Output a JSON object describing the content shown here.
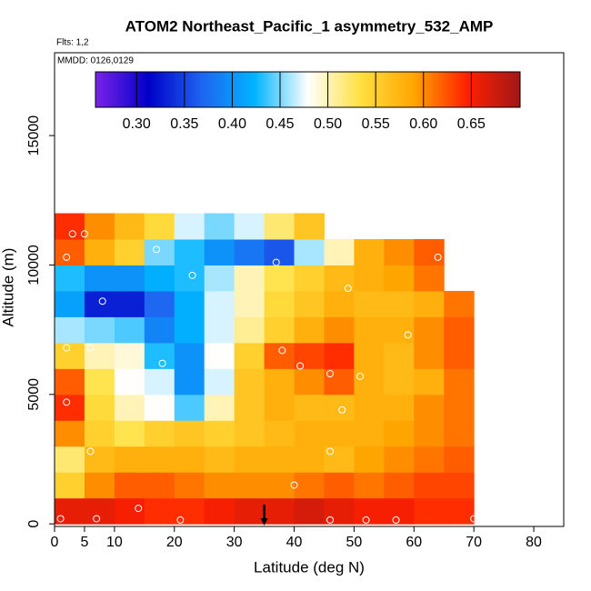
{
  "chart_data": {
    "type": "heatmap",
    "title": "ATOM2 Northeast_Pacific_1 asymmetry_532_AMP",
    "subtitle": "Flts: 1,2",
    "annotation": "MMDD: 0126,0129",
    "x_label": "Latitude (deg N)",
    "y_label": "Altitude (m)",
    "xlim": [
      0,
      85
    ],
    "ylim": [
      -100,
      18200
    ],
    "xticks": [
      0,
      5,
      10,
      20,
      30,
      40,
      50,
      60,
      70,
      80
    ],
    "yticks": [
      0,
      5000,
      10000,
      15000
    ],
    "x_edges": [
      0,
      5,
      10,
      15,
      20,
      25,
      30,
      35,
      40,
      45,
      50,
      55,
      60,
      65,
      70
    ],
    "y_edges": [
      0,
      1000,
      2000,
      3000,
      4000,
      5000,
      6000,
      7000,
      8000,
      9000,
      10000,
      11000,
      12000
    ],
    "z": [
      [
        0.66,
        0.66,
        0.65,
        0.64,
        0.64,
        0.65,
        0.66,
        0.66,
        0.67,
        0.66,
        0.65,
        0.65,
        0.64,
        0.64
      ],
      [
        0.55,
        0.6,
        0.62,
        0.62,
        0.61,
        0.6,
        0.6,
        0.6,
        0.61,
        0.62,
        0.61,
        0.62,
        0.63,
        0.63
      ],
      [
        0.52,
        0.57,
        0.58,
        0.58,
        0.58,
        0.57,
        0.58,
        0.58,
        0.58,
        0.57,
        0.59,
        0.6,
        0.61,
        0.62
      ],
      [
        0.6,
        0.55,
        0.53,
        0.55,
        0.56,
        0.55,
        0.56,
        0.57,
        0.58,
        0.58,
        0.58,
        0.59,
        0.6,
        0.61
      ],
      [
        0.64,
        0.54,
        0.5,
        0.48,
        0.44,
        0.5,
        0.56,
        0.58,
        0.57,
        0.57,
        0.58,
        0.58,
        0.6,
        0.61
      ],
      [
        0.62,
        0.53,
        0.48,
        0.47,
        0.4,
        0.47,
        0.56,
        0.58,
        0.6,
        0.62,
        0.58,
        0.57,
        0.58,
        0.61
      ],
      [
        0.55,
        0.5,
        0.49,
        0.43,
        0.4,
        0.48,
        0.55,
        0.62,
        0.63,
        0.64,
        0.58,
        0.57,
        0.6,
        0.62
      ],
      [
        0.46,
        0.45,
        0.44,
        0.39,
        0.42,
        0.47,
        0.51,
        0.55,
        0.58,
        0.6,
        0.58,
        0.58,
        0.6,
        0.62
      ],
      [
        0.41,
        0.33,
        0.33,
        0.37,
        0.42,
        0.47,
        0.5,
        0.54,
        0.56,
        0.58,
        0.57,
        0.57,
        0.58,
        0.61
      ],
      [
        0.43,
        0.4,
        0.4,
        0.42,
        0.43,
        0.46,
        0.5,
        0.53,
        0.55,
        0.57,
        0.58,
        0.59,
        0.61,
        null
      ],
      [
        0.62,
        0.58,
        0.55,
        0.45,
        0.43,
        0.4,
        0.38,
        0.36,
        0.46,
        0.5,
        0.58,
        0.6,
        0.62,
        null
      ],
      [
        0.64,
        0.6,
        0.57,
        0.54,
        0.47,
        0.45,
        0.47,
        0.52,
        0.56,
        null,
        null,
        null,
        null,
        null
      ]
    ],
    "clim": [
      0.257,
      0.701
    ],
    "colorscale": [
      "#7b22e8",
      "#0000c8",
      "#1e64f0",
      "#00b4ff",
      "#ffffff",
      "#ffe040",
      "#ffa500",
      "#ff2000",
      "#a01818"
    ],
    "cticks": [
      0.3,
      0.35,
      0.4,
      0.45,
      0.5,
      0.55,
      0.6,
      0.65
    ],
    "ctick_labels": [
      "0.30",
      "0.35",
      "0.40",
      "0.45",
      "0.50",
      "0.55",
      "0.60",
      "0.65"
    ],
    "points": {
      "x": [
        1,
        7,
        14,
        21,
        46,
        52,
        57,
        70,
        6,
        40,
        46,
        2,
        48,
        2,
        18,
        41,
        46,
        51,
        6,
        38,
        59,
        8,
        23,
        37,
        49,
        2,
        17,
        64,
        3,
        5
      ],
      "y": [
        200,
        200,
        600,
        150,
        150,
        150,
        150,
        200,
        2800,
        1500,
        2800,
        4700,
        4400,
        6800,
        6200,
        6100,
        5800,
        5700,
        6800,
        6700,
        7300,
        8600,
        9600,
        10100,
        9100,
        10300,
        10600,
        10300,
        11200,
        11200
      ],
      "color": "#ffffff"
    },
    "arrow_x": 35
  }
}
